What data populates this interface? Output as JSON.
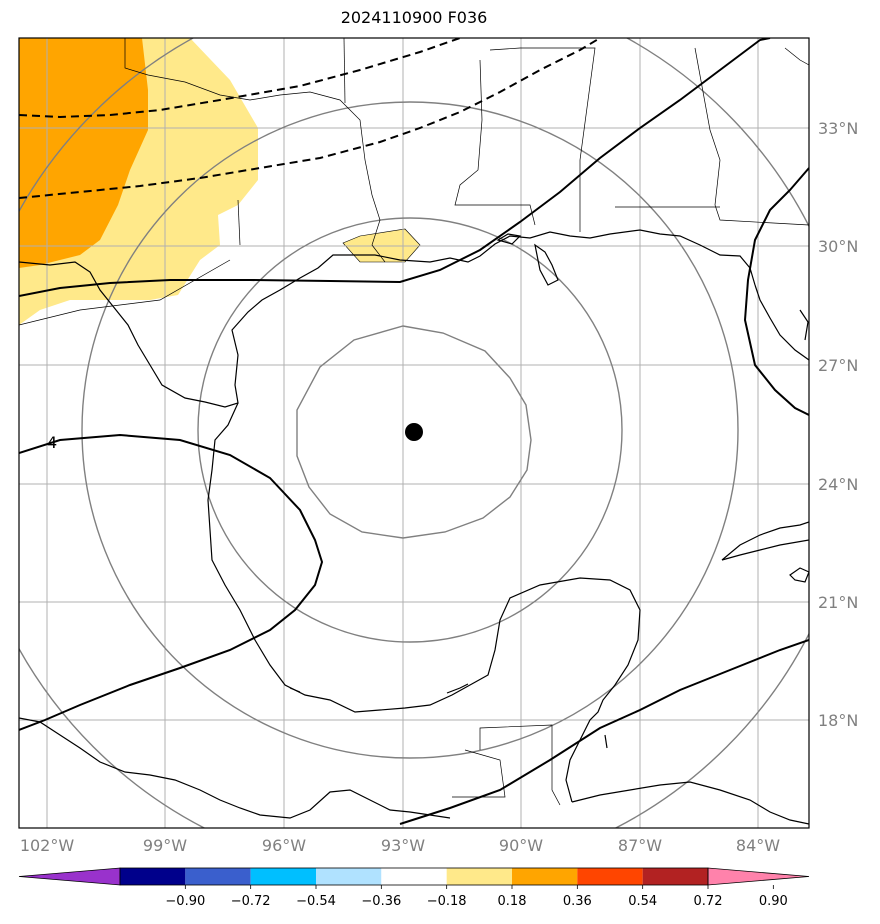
{
  "title": "2024110900 F036",
  "map": {
    "lat_labels": [
      "33°N",
      "30°N",
      "27°N",
      "24°N",
      "21°N",
      "18°N"
    ],
    "lon_labels": [
      "102°W",
      "99°W",
      "96°W",
      "93°W",
      "90°W",
      "87°W",
      "84°W"
    ],
    "contour_label": "4",
    "center_marker": {
      "lat": 25.2,
      "lon": -92.7
    },
    "colors": {
      "land_fill": "#ffffff",
      "grid": "#b0b0b0",
      "rings": "#808080"
    }
  },
  "colorbar": {
    "ticks": [
      "−0.90",
      "−0.72",
      "−0.54",
      "−0.36",
      "−0.18",
      "0.18",
      "0.36",
      "0.54",
      "0.72",
      "0.90"
    ],
    "colors": [
      "#9932cc",
      "#00008b",
      "#3a5fcd",
      "#00bfff",
      "#b0e2ff",
      "#ffffff",
      "#ffe98a",
      "#ffa500",
      "#ff4500",
      "#b22222",
      "#ff82ab"
    ]
  }
}
